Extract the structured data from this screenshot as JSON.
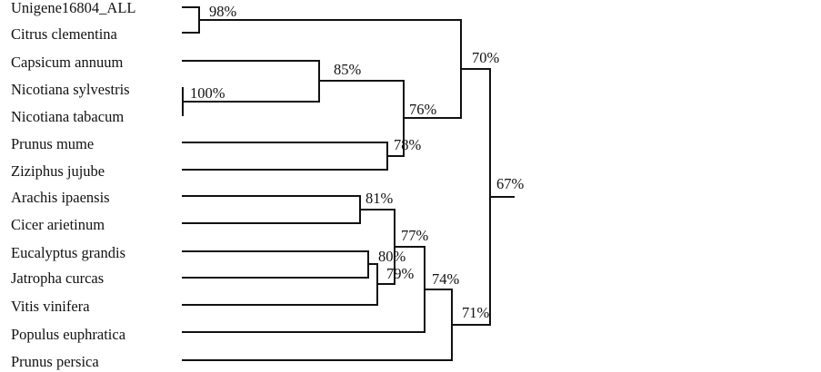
{
  "tree": {
    "taxa": [
      "Unigene16804_ALL",
      "Citrus clementina",
      "Capsicum annuum",
      "Nicotiana sylvestris",
      "Nicotiana tabacum",
      "Prunus mume",
      "Ziziphus jujube",
      "Arachis ipaensis",
      "Cicer arietinum",
      "Eucalyptus grandis",
      "Jatropha curcas",
      "Vitis vinifera",
      "Populus euphratica",
      "Prunus persica"
    ],
    "support_values": [
      "98%",
      "100%",
      "85%",
      "78%",
      "76%",
      "70%",
      "81%",
      "80%",
      "79%",
      "77%",
      "74%",
      "71%",
      "67%"
    ],
    "colors": {
      "line": "#111111",
      "text": "#111111",
      "background": "#ffffff"
    }
  }
}
